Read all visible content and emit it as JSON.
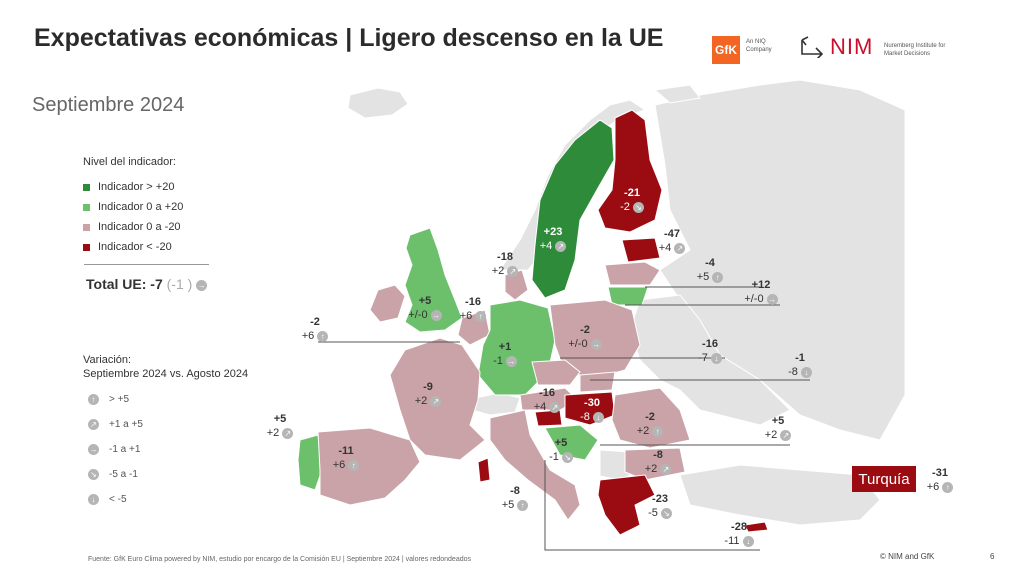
{
  "header": {
    "title": "Expectativas económicas | Ligero descenso en la UE",
    "subtitle": "Septiembre 2024",
    "gfk_logo": "GfK",
    "gfk_tagline": "An NIQ Company",
    "nim_logo": "NIM",
    "nim_tagline": "Nuremberg Institute for Market Decisions"
  },
  "legend": {
    "title": "Nivel del indicador:",
    "items": [
      {
        "label": "Indicador > +20",
        "color": "#2e8b3a"
      },
      {
        "label": "Indicador 0 a +20",
        "color": "#6cc06c"
      },
      {
        "label": "Indicador 0 a -20",
        "color": "#c9a3a7"
      },
      {
        "label": "Indicador < -20",
        "color": "#9b0c12"
      }
    ]
  },
  "total": {
    "label": "Total UE: -7",
    "change": "(-1 )"
  },
  "variation": {
    "title_line1": "Variación:",
    "title_line2": "Septiembre 2024 vs. Agosto 2024",
    "items": [
      {
        "label": "> +5",
        "icon": "arrow-up-icon"
      },
      {
        "label": "+1 a +5",
        "icon": "arrow-up-right-icon"
      },
      {
        "label": "-1 a +1",
        "icon": "arrow-right-icon"
      },
      {
        "label": "-5 a -1",
        "icon": "arrow-down-right-icon"
      },
      {
        "label": "< -5",
        "icon": "arrow-down-icon"
      }
    ]
  },
  "countries": {
    "sweden": {
      "value": "+23",
      "change": "+4"
    },
    "finland": {
      "value": "-21",
      "change": "-2"
    },
    "estonia": {
      "value": "-47",
      "change": "+4"
    },
    "latvia": {
      "value": "-4",
      "change": "+5"
    },
    "lithuania": {
      "value": "+12",
      "change": "+/-0"
    },
    "denmark": {
      "value": "-18",
      "change": "+2"
    },
    "ireland": {
      "value": "-2",
      "change": "+6"
    },
    "uk": {
      "value": "+5",
      "change": "+/-0"
    },
    "netherlands": {
      "value": "-16",
      "change": "+6"
    },
    "germany": {
      "value": "+1",
      "change": "-1"
    },
    "poland": {
      "value": "-2",
      "change": "+/-0"
    },
    "czechia": {
      "value": "-16",
      "change": "-7"
    },
    "slovakia": {
      "value": "-1",
      "change": "-8"
    },
    "france": {
      "value": "-9",
      "change": "+2"
    },
    "austria": {
      "value": "-16",
      "change": "+4"
    },
    "hungary": {
      "value": "-30",
      "change": "-8"
    },
    "romania": {
      "value": "-2",
      "change": "+2"
    },
    "croatia": {
      "value": "+5",
      "change": "-1"
    },
    "slovenia": {
      "value": "+5",
      "change": "+2"
    },
    "bulgaria": {
      "value": "-8",
      "change": "+2"
    },
    "portugal": {
      "value": "+5",
      "change": "+2"
    },
    "spain": {
      "value": "-11",
      "change": "+6"
    },
    "italy": {
      "value": "-8",
      "change": "+5"
    },
    "greece": {
      "value": "-23",
      "change": "-5"
    },
    "cyprus": {
      "value": "-28",
      "change": "-11"
    },
    "turkey": {
      "label": "Turquía",
      "value": "-31",
      "change": "+6"
    }
  },
  "footer": {
    "source": "Fuente: GfK Euro Clima powered by NIM, estudio por encargo de la Comisión EU | Septiembre 2024 | valores redondeados",
    "copyright": "© NIM and GfK",
    "page": "6"
  }
}
